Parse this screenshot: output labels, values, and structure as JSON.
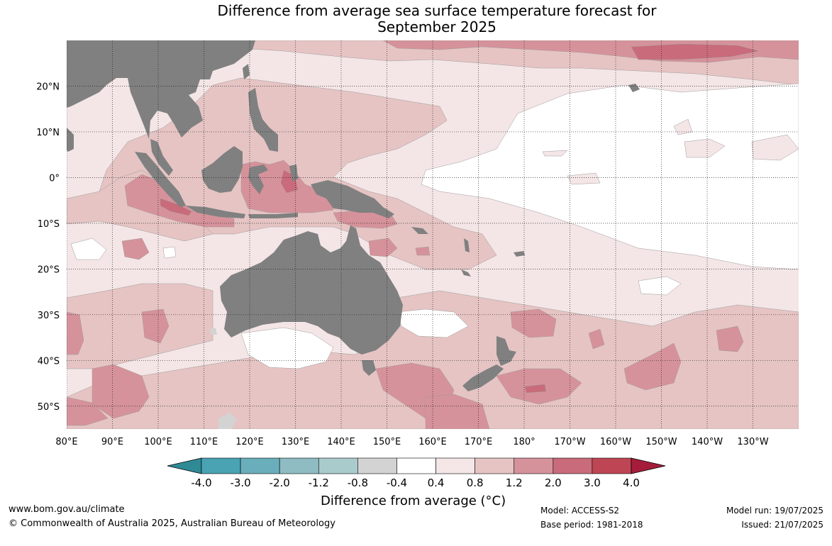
{
  "title": {
    "line1": "Difference from average sea surface temperature forecast for",
    "line2": "September 2025"
  },
  "map": {
    "lon_range": [
      80,
      240
    ],
    "lat_range": [
      -55,
      30
    ],
    "lat_ticks": [
      {
        "value": 20,
        "label": "20°N"
      },
      {
        "value": 10,
        "label": "10°N"
      },
      {
        "value": 0,
        "label": "0°"
      },
      {
        "value": -10,
        "label": "10°S"
      },
      {
        "value": -20,
        "label": "20°S"
      },
      {
        "value": -30,
        "label": "30°S"
      },
      {
        "value": -40,
        "label": "40°S"
      },
      {
        "value": -50,
        "label": "50°S"
      }
    ],
    "lon_ticks": [
      {
        "value": 80,
        "label": "80°E"
      },
      {
        "value": 90,
        "label": "90°E"
      },
      {
        "value": 100,
        "label": "100°E"
      },
      {
        "value": 110,
        "label": "110°E"
      },
      {
        "value": 120,
        "label": "120°E"
      },
      {
        "value": 130,
        "label": "130°E"
      },
      {
        "value": 140,
        "label": "140°E"
      },
      {
        "value": 150,
        "label": "150°E"
      },
      {
        "value": 160,
        "label": "160°E"
      },
      {
        "value": 170,
        "label": "170°E"
      },
      {
        "value": 180,
        "label": "180°"
      },
      {
        "value": 190,
        "label": "170°W"
      },
      {
        "value": 200,
        "label": "160°W"
      },
      {
        "value": 210,
        "label": "150°W"
      },
      {
        "value": 220,
        "label": "140°W"
      },
      {
        "value": 230,
        "label": "130°W"
      }
    ],
    "colors": {
      "land": "#808080",
      "bin_04_08": "#f4e6e6",
      "bin_08_12": "#e6c4c4",
      "bin_12_20": "#d6929b",
      "bin_20_30": "#c96b7a"
    }
  },
  "colorbar": {
    "label": "Difference from average (°C)",
    "ticks": [
      "-4.0",
      "-3.0",
      "-2.0",
      "-1.2",
      "-0.8",
      "-0.4",
      "0.4",
      "0.8",
      "1.2",
      "2.0",
      "3.0",
      "4.0"
    ],
    "colors": [
      "#2f8a96",
      "#49a3b3",
      "#6aaebb",
      "#8fbcc3",
      "#aacbcc",
      "#d3d3d3",
      "#ffffff",
      "#f4e6e6",
      "#e6c4c4",
      "#d6929b",
      "#c96b7a",
      "#be4654",
      "#a51d3a"
    ]
  },
  "footer": {
    "website": "www.bom.gov.au/climate",
    "copyright": "© Commonwealth of Australia 2025, Australian Bureau of Meteorology",
    "model": "Model: ACCESS-S2",
    "base_period": "Base period: 1981-2018",
    "model_run": "Model run: 19/07/2025",
    "issued": "Issued: 21/07/2025"
  }
}
